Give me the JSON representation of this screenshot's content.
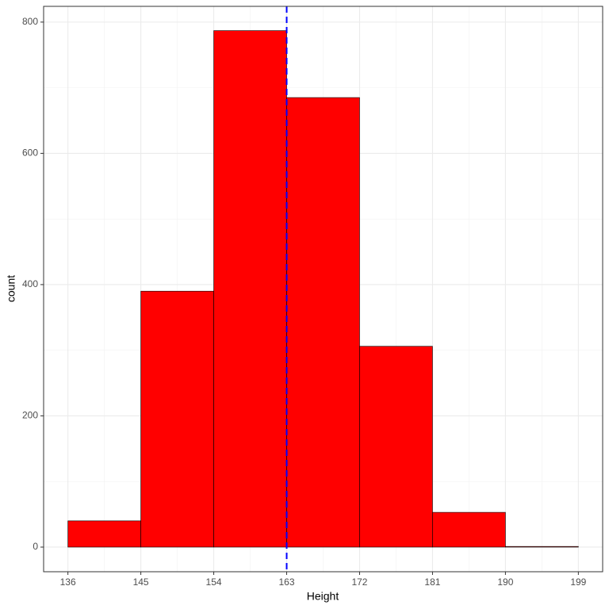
{
  "chart_data": {
    "type": "histogram",
    "x_label": "Height",
    "y_label": "count",
    "bins": [
      136,
      145,
      154,
      163,
      172,
      181,
      190,
      199
    ],
    "values": [
      40,
      390,
      787,
      685,
      306,
      53,
      1
    ],
    "color": "#ff0000",
    "edgecolor": "#000000",
    "xlim": [
      133,
      202
    ],
    "ylim": [
      -37.5,
      824
    ],
    "xticks": [
      136,
      145,
      154,
      163,
      172,
      181,
      190,
      199
    ],
    "yticks": [
      0,
      200,
      400,
      600,
      800
    ],
    "grid": true,
    "vline": {
      "x": 163,
      "color": "#0000ff",
      "linestyle": "dashed"
    }
  }
}
